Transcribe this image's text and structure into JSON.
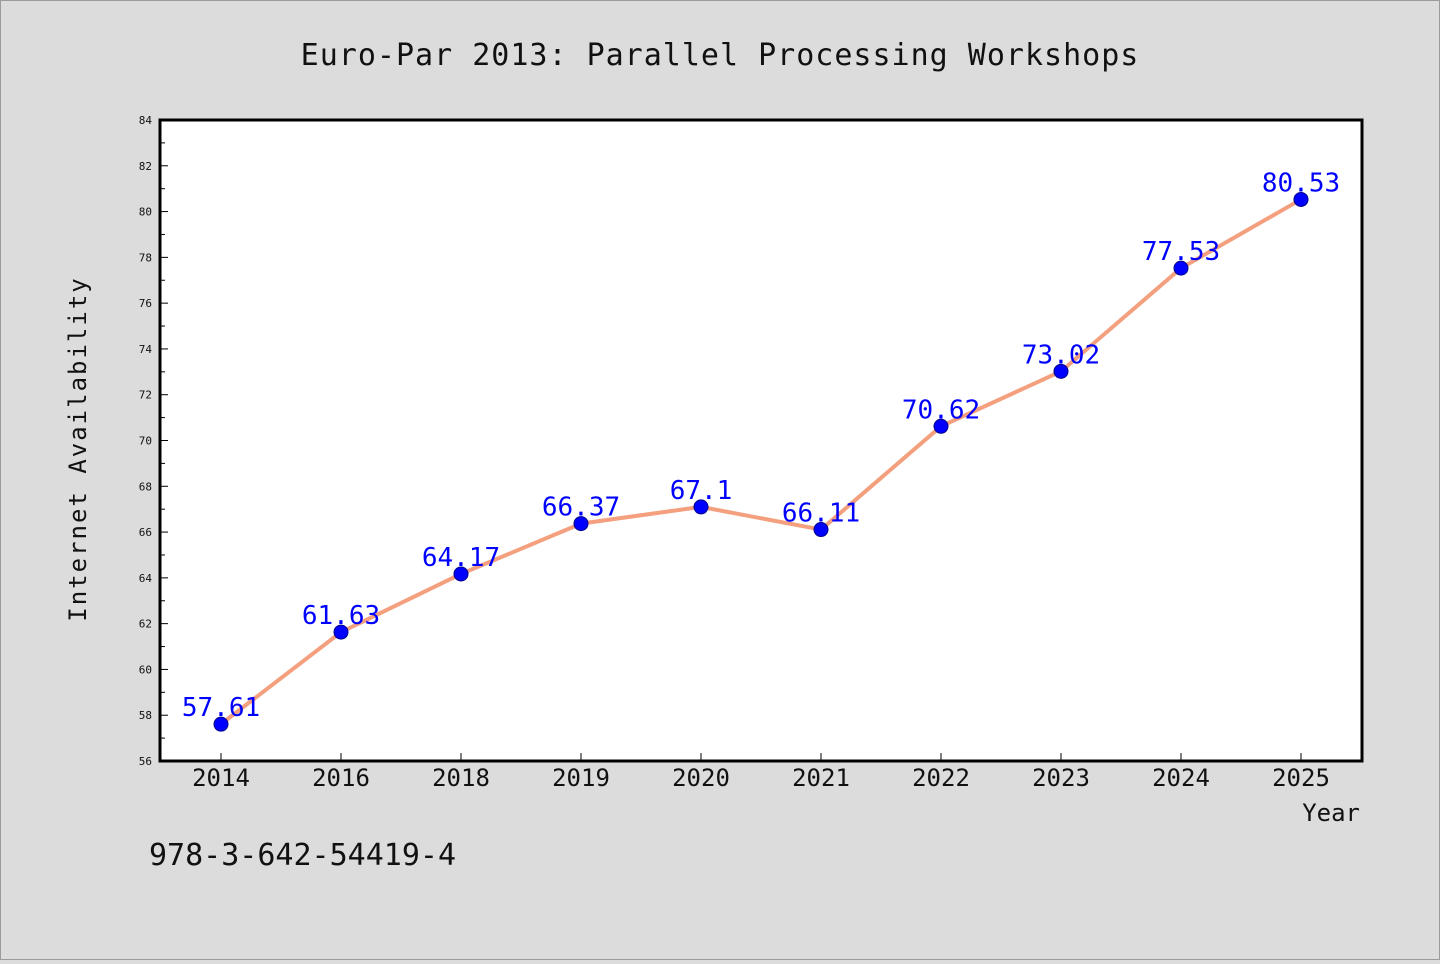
{
  "chart_data": {
    "type": "line",
    "title": "Euro-Par 2013: Parallel Processing Workshops",
    "xlabel": "Year",
    "ylabel": "Internet Availability",
    "categories": [
      "2014",
      "2016",
      "2018",
      "2019",
      "2020",
      "2021",
      "2022",
      "2023",
      "2024",
      "2025"
    ],
    "values": [
      57.61,
      61.63,
      64.17,
      66.37,
      67.1,
      66.11,
      70.62,
      73.02,
      77.53,
      80.53
    ],
    "data_labels": [
      "57.61",
      "61.63",
      "64.17",
      "66.37",
      "67.1",
      "66.11",
      "70.62",
      "73.02",
      "77.53",
      "80.53"
    ],
    "ylim": [
      56,
      84
    ],
    "yticks": [
      56,
      58,
      60,
      62,
      64,
      66,
      68,
      70,
      72,
      74,
      76,
      78,
      80,
      82,
      84
    ],
    "grid": false,
    "line_color": "#f4a07f",
    "marker_color": "#0000ff",
    "label_color": "#0000ff"
  },
  "footer": {
    "text": "978-3-642-54419-4"
  }
}
